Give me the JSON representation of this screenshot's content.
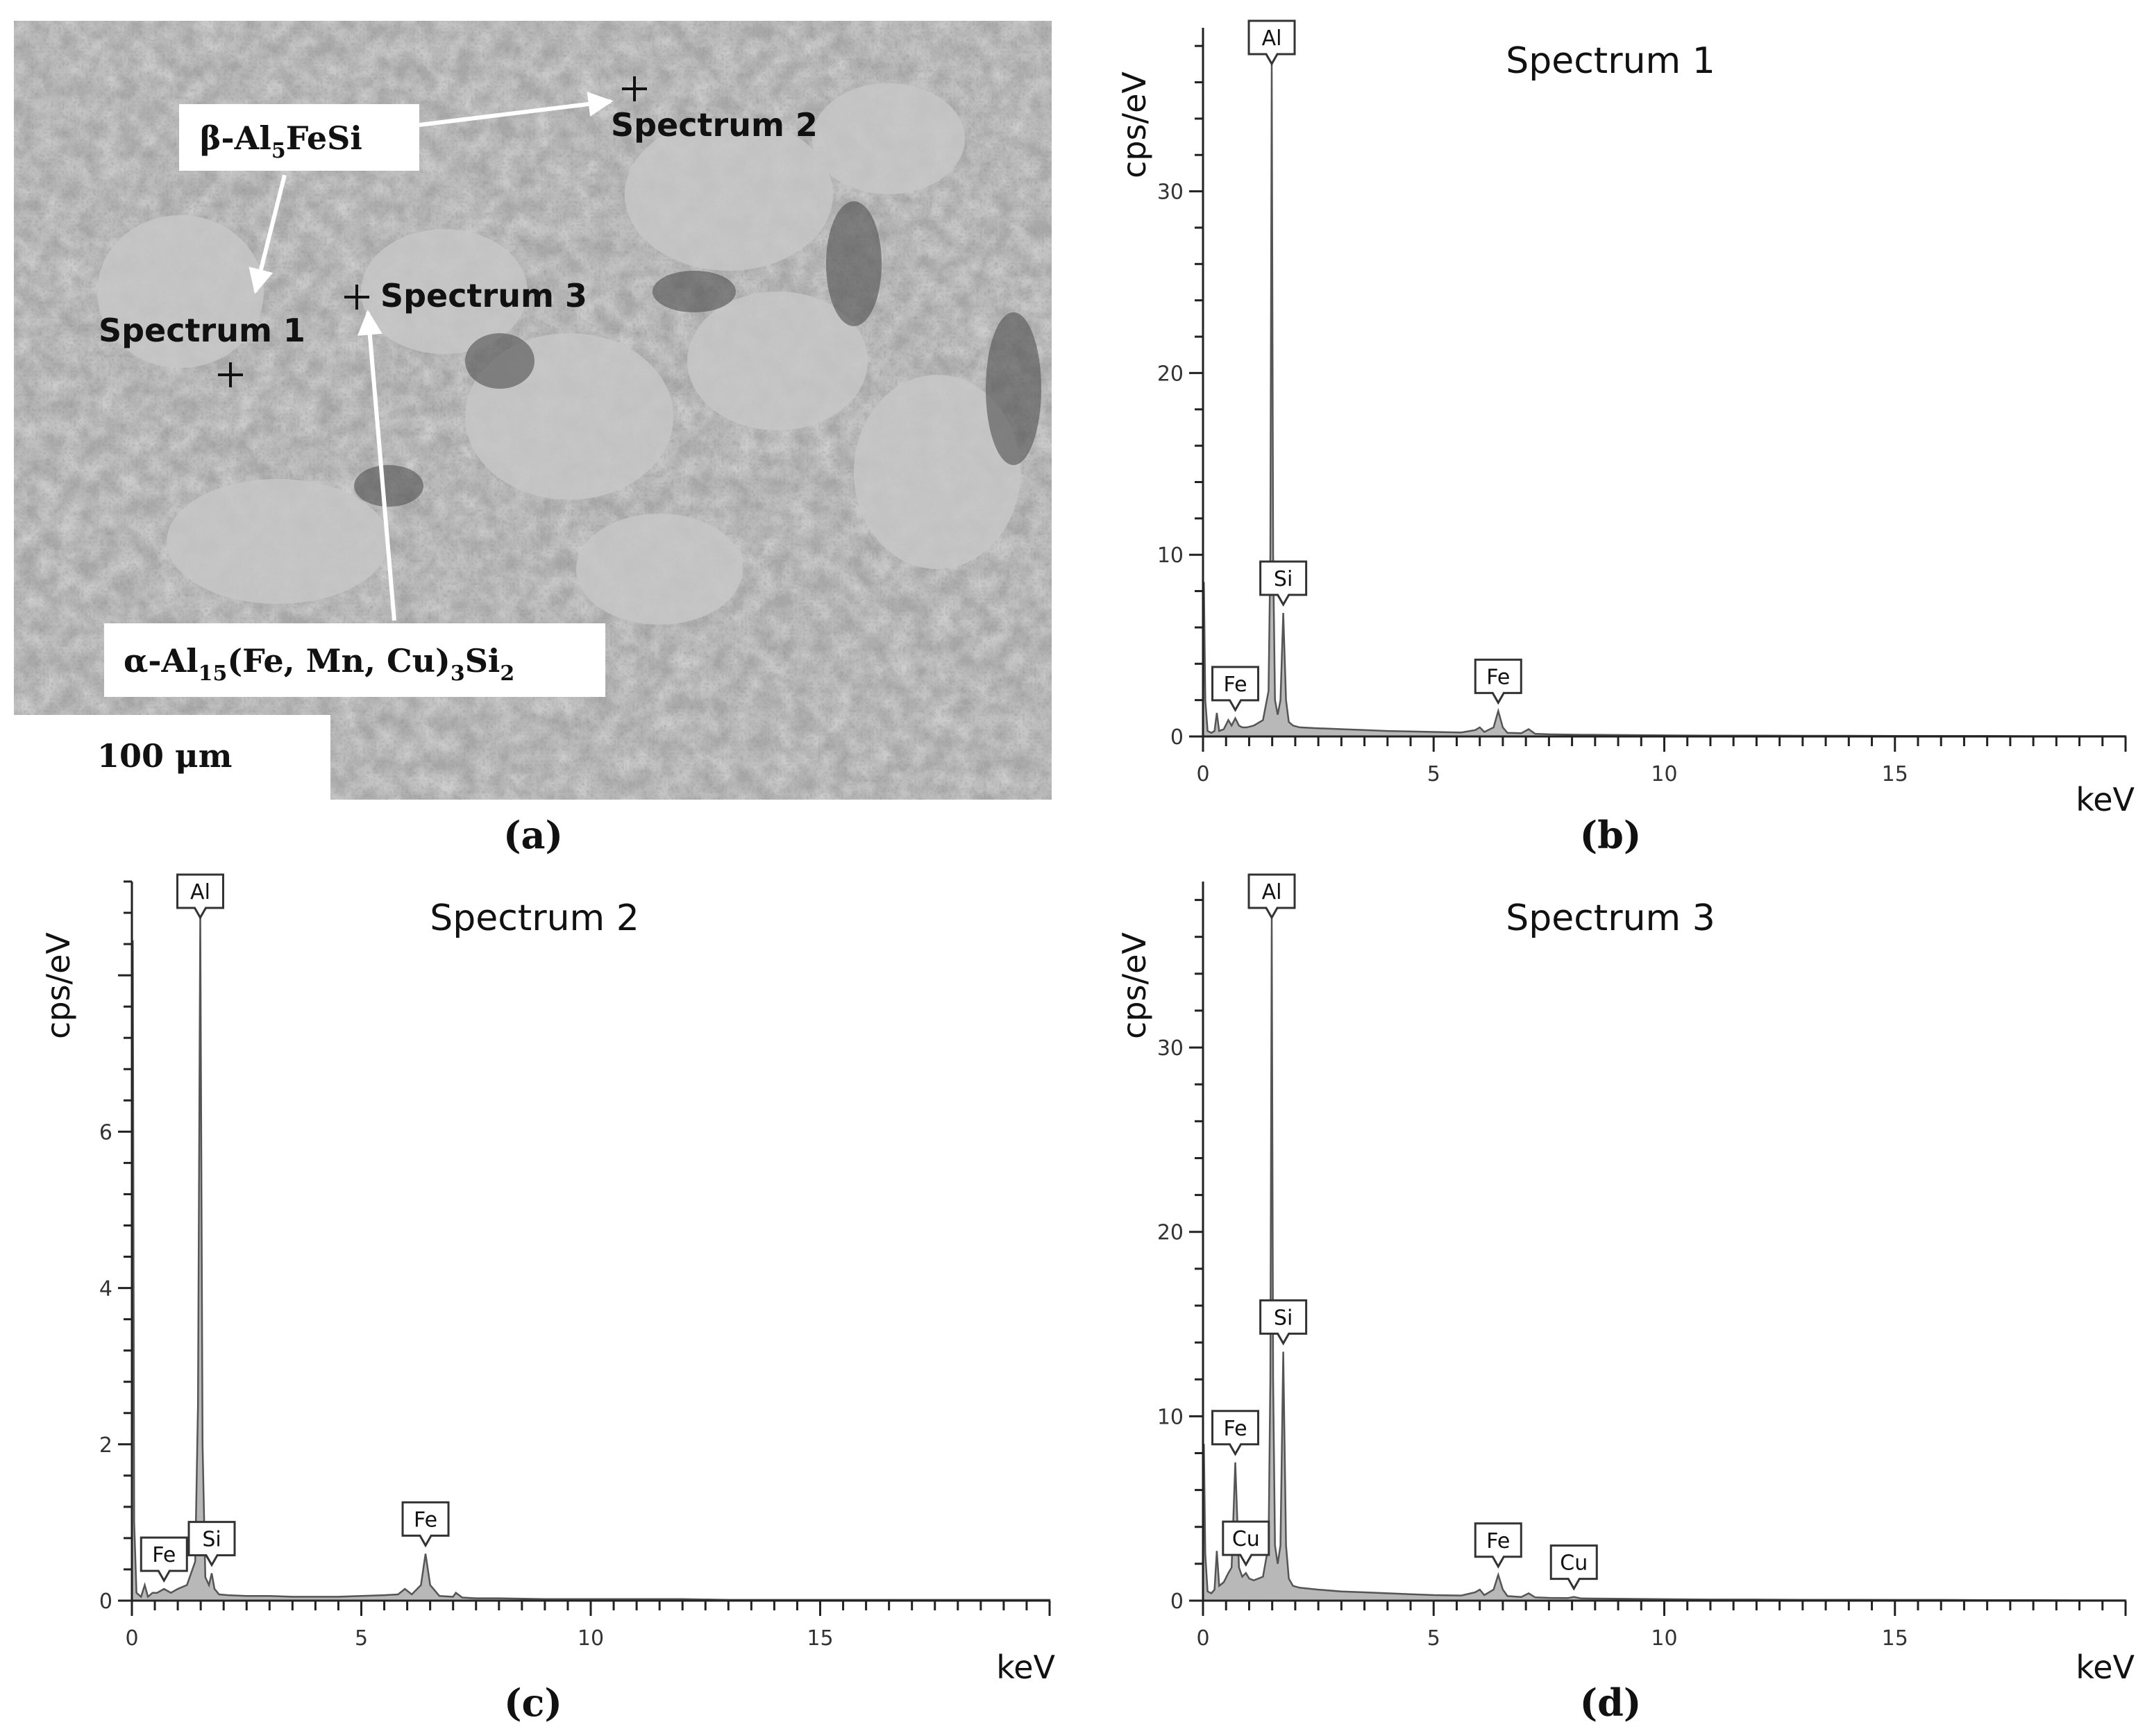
{
  "panel_labels": [
    "(a)",
    "(b)",
    "(c)",
    "(d)"
  ],
  "sem": {
    "phase_beta_prefix": "β-Al",
    "phase_beta_sub": "5",
    "phase_beta_suffix": "FeSi",
    "phase_alpha_prefix": "α-Al",
    "phase_alpha_sub1": "15",
    "phase_alpha_mid": "(Fe, Mn, Cu)",
    "phase_alpha_sub2": "3",
    "phase_alpha_si": "Si",
    "phase_alpha_sub3": "2",
    "spot_labels": [
      "Spectrum 1",
      "Spectrum 2",
      "Spectrum 3"
    ],
    "scale_bar": "100 μm"
  },
  "chart_data": [
    {
      "type": "area",
      "title": "Spectrum 1",
      "xlabel": "keV",
      "ylabel": "cps/eV",
      "xlim": [
        0,
        20
      ],
      "ylim": [
        0,
        39
      ],
      "x_ticks": [
        0,
        5,
        10,
        15
      ],
      "y_ticks": [
        0,
        10,
        20,
        30
      ],
      "peaks": [
        {
          "element": "Al",
          "x": 1.49,
          "y": 37.0
        },
        {
          "element": "Si",
          "x": 1.74,
          "y": 6.8
        },
        {
          "element": "Fe",
          "x": 0.7,
          "y": 1.0
        },
        {
          "element": "Fe",
          "x": 6.4,
          "y": 1.4
        }
      ],
      "series": [
        {
          "x": [
            0.0,
            0.02,
            0.05,
            0.1,
            0.18,
            0.25,
            0.3,
            0.35,
            0.45,
            0.55,
            0.62,
            0.7,
            0.78,
            0.85,
            0.95,
            1.1,
            1.3,
            1.42,
            1.46,
            1.49,
            1.52,
            1.56,
            1.62,
            1.68,
            1.74,
            1.8,
            1.86,
            1.95,
            2.1,
            2.5,
            3.0,
            3.5,
            4.0,
            4.5,
            5.0,
            5.6,
            5.9,
            6.0,
            6.1,
            6.3,
            6.4,
            6.5,
            6.6,
            6.9,
            7.06,
            7.2,
            7.5,
            8,
            9,
            10,
            11,
            12,
            13,
            14,
            15,
            16,
            17,
            18,
            19,
            20
          ],
          "y": [
            0.0,
            8.5,
            2.0,
            0.3,
            0.2,
            0.3,
            1.3,
            0.3,
            0.4,
            0.9,
            0.6,
            1.0,
            0.6,
            0.5,
            0.5,
            0.6,
            0.9,
            2.5,
            10.0,
            37.0,
            10.0,
            2.0,
            1.2,
            2.0,
            6.8,
            2.0,
            0.8,
            0.6,
            0.5,
            0.45,
            0.4,
            0.35,
            0.3,
            0.28,
            0.25,
            0.22,
            0.35,
            0.5,
            0.25,
            0.5,
            1.4,
            0.5,
            0.2,
            0.18,
            0.4,
            0.15,
            0.12,
            0.1,
            0.08,
            0.06,
            0.05,
            0.05,
            0.04,
            0.04,
            0.03,
            0.03,
            0.03,
            0.02,
            0.02,
            0.02
          ]
        }
      ]
    },
    {
      "type": "area",
      "title": "Spectrum 2",
      "xlabel": "keV",
      "ylabel": "cps/eV",
      "xlim": [
        0,
        20
      ],
      "ylim": [
        0,
        9.2
      ],
      "x_ticks": [
        0,
        5,
        10,
        15
      ],
      "y_ticks": [
        0,
        2,
        4,
        6
      ],
      "peaks": [
        {
          "element": "Al",
          "x": 1.49,
          "y": 8.8
        },
        {
          "element": "Si",
          "x": 1.74,
          "y": 0.35
        },
        {
          "element": "Fe",
          "x": 0.7,
          "y": 0.15
        },
        {
          "element": "Fe",
          "x": 6.4,
          "y": 0.6
        }
      ],
      "series": [
        {
          "x": [
            0.0,
            0.02,
            0.05,
            0.1,
            0.2,
            0.28,
            0.35,
            0.45,
            0.55,
            0.7,
            0.85,
            1.0,
            1.2,
            1.38,
            1.44,
            1.49,
            1.54,
            1.6,
            1.68,
            1.74,
            1.8,
            1.9,
            2.1,
            2.5,
            3.0,
            3.5,
            4.0,
            4.5,
            5.0,
            5.5,
            5.8,
            5.95,
            6.1,
            6.3,
            6.4,
            6.5,
            6.7,
            7.0,
            7.06,
            7.2,
            7.5,
            8,
            9,
            10,
            11,
            12,
            13,
            14,
            15,
            16,
            17,
            18,
            19,
            20
          ],
          "y": [
            0.0,
            8.45,
            1.0,
            0.1,
            0.05,
            0.2,
            0.05,
            0.1,
            0.1,
            0.15,
            0.1,
            0.15,
            0.2,
            0.5,
            2.5,
            8.8,
            2.0,
            0.3,
            0.2,
            0.35,
            0.15,
            0.08,
            0.07,
            0.06,
            0.06,
            0.05,
            0.05,
            0.05,
            0.06,
            0.07,
            0.08,
            0.15,
            0.08,
            0.2,
            0.6,
            0.2,
            0.06,
            0.05,
            0.1,
            0.04,
            0.03,
            0.03,
            0.02,
            0.02,
            0.02,
            0.02,
            0.01,
            0.01,
            0.01,
            0.01,
            0.01,
            0.01,
            0.01,
            0.01
          ]
        }
      ]
    },
    {
      "type": "area",
      "title": "Spectrum 3",
      "xlabel": "keV",
      "ylabel": "cps/eV",
      "xlim": [
        0,
        20
      ],
      "ylim": [
        0,
        39
      ],
      "x_ticks": [
        0,
        5,
        10,
        15
      ],
      "y_ticks": [
        0,
        10,
        20,
        30
      ],
      "peaks": [
        {
          "element": "Al",
          "x": 1.49,
          "y": 37.0
        },
        {
          "element": "Si",
          "x": 1.74,
          "y": 13.5
        },
        {
          "element": "Fe",
          "x": 0.7,
          "y": 7.5
        },
        {
          "element": "Cu",
          "x": 0.93,
          "y": 1.5
        },
        {
          "element": "Fe",
          "x": 6.4,
          "y": 1.4
        },
        {
          "element": "Cu",
          "x": 8.04,
          "y": 0.2
        }
      ],
      "series": [
        {
          "x": [
            0.0,
            0.02,
            0.05,
            0.1,
            0.18,
            0.25,
            0.3,
            0.35,
            0.45,
            0.55,
            0.62,
            0.7,
            0.78,
            0.85,
            0.93,
            1.0,
            1.1,
            1.3,
            1.42,
            1.46,
            1.49,
            1.52,
            1.56,
            1.62,
            1.68,
            1.74,
            1.8,
            1.86,
            1.95,
            2.1,
            2.5,
            3.0,
            3.5,
            4.0,
            4.5,
            5.0,
            5.6,
            5.9,
            6.0,
            6.1,
            6.3,
            6.4,
            6.5,
            6.6,
            6.9,
            7.06,
            7.2,
            7.5,
            7.9,
            8.04,
            8.2,
            9,
            10,
            11,
            12,
            13,
            14,
            15,
            16,
            17,
            18,
            19,
            20
          ],
          "y": [
            0.0,
            8.5,
            2.5,
            0.5,
            0.4,
            0.6,
            2.7,
            0.8,
            1.0,
            1.5,
            1.8,
            7.5,
            1.8,
            1.3,
            1.5,
            1.2,
            1.1,
            1.3,
            3.0,
            12.0,
            37.0,
            12.0,
            3.0,
            2.0,
            3.0,
            13.5,
            3.0,
            1.2,
            0.8,
            0.7,
            0.6,
            0.5,
            0.45,
            0.4,
            0.35,
            0.3,
            0.28,
            0.45,
            0.6,
            0.3,
            0.6,
            1.4,
            0.6,
            0.25,
            0.2,
            0.4,
            0.18,
            0.15,
            0.14,
            0.2,
            0.12,
            0.1,
            0.08,
            0.06,
            0.06,
            0.05,
            0.05,
            0.04,
            0.04,
            0.03,
            0.03,
            0.02,
            0.02
          ]
        }
      ]
    }
  ]
}
